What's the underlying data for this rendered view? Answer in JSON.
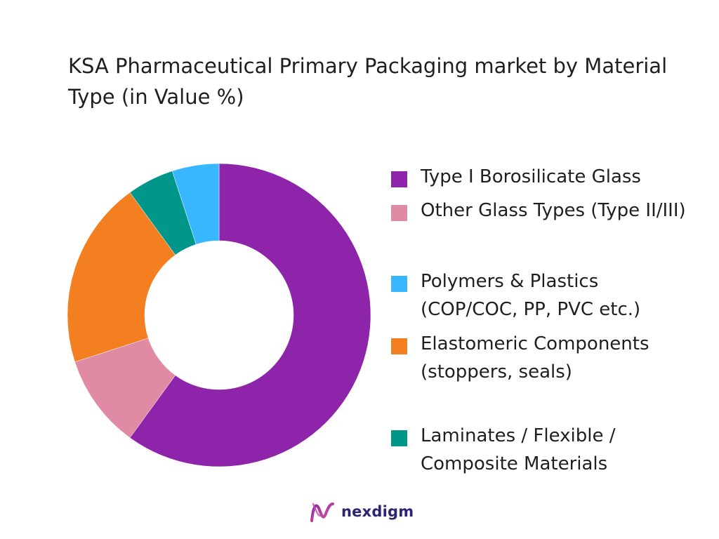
{
  "chart_data": {
    "type": "pie",
    "title": "KSA Pharmaceutical Primary Packaging market by Material Type (in Value %)",
    "donut": true,
    "legend_position": "right",
    "categories": [
      "Type I Borosilicate Glass",
      "Other Glass Types (Type II/III)",
      "Polymers & Plastics (COP/COC, PP, PVC etc.)",
      "Elastomeric Components (stoppers, seals)",
      "Laminates / Flexible / Composite Materials"
    ],
    "values": [
      60,
      10,
      5,
      20,
      5
    ],
    "colors": [
      "#8e24aa",
      "#e08aa3",
      "#38b6ff",
      "#f47f20",
      "#00968a"
    ],
    "draw_order": [
      0,
      1,
      3,
      4,
      2
    ]
  },
  "brand": {
    "name": "nexdigm",
    "icon": "nexdigm-logo-icon",
    "color": "#2c2474"
  }
}
